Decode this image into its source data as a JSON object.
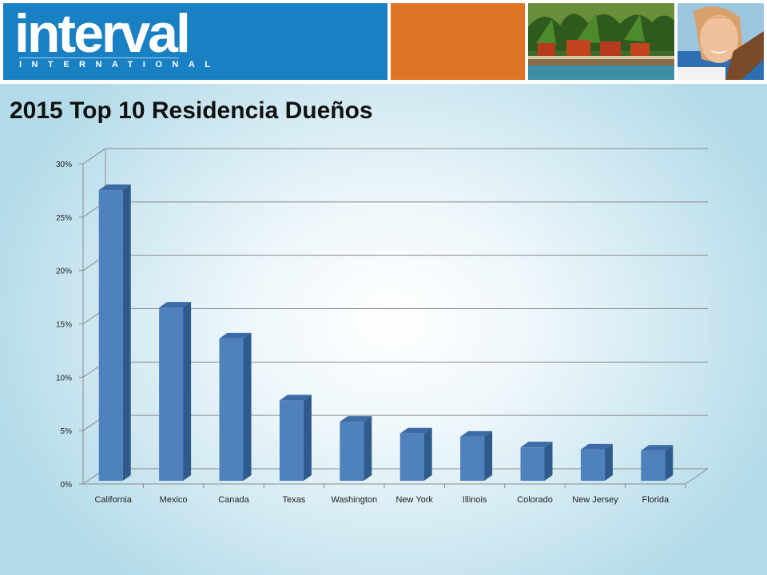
{
  "header": {
    "logo_text": "interval",
    "logo_subtext": "INTERNATIONAL",
    "colors": {
      "logo_panel": "#1a80c4",
      "orange_panel": "#e07426"
    }
  },
  "page": {
    "title": "2015 Top 10 Residencia Dueños"
  },
  "chart_data": {
    "type": "bar",
    "style": "3d",
    "categories": [
      "California",
      "Mexico",
      "Canada",
      "Texas",
      "Washington",
      "New York",
      "Illinois",
      "Colorado",
      "New Jersey",
      "Florida"
    ],
    "values": [
      28.5,
      17.5,
      14.6,
      8.8,
      6.8,
      5.7,
      5.4,
      4.4,
      4.2,
      4.1
    ],
    "unit": "%",
    "ylim": [
      0,
      30
    ],
    "yticks": [
      "0%",
      "5%",
      "10%",
      "15%",
      "20%",
      "25%",
      "30%"
    ],
    "grid": true,
    "legend": "none",
    "title": "",
    "xlabel": "",
    "ylabel": "",
    "bar_color": "#4f81bd"
  }
}
